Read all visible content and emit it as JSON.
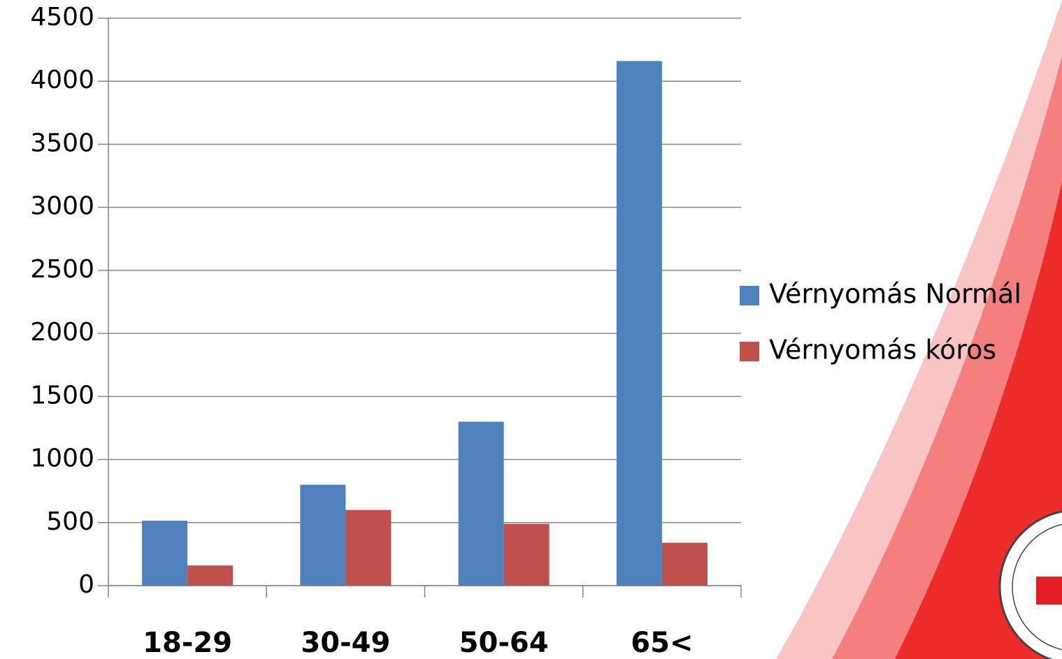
{
  "chart_data": {
    "type": "bar",
    "categories": [
      "18-29",
      "30-49",
      "50-64",
      "65<"
    ],
    "series": [
      {
        "name": "Vérnyomás Normál",
        "color": "#4f81bd",
        "values": [
          515,
          800,
          1300,
          4160
        ]
      },
      {
        "name": "Vérnyomás kóros",
        "color": "#c0504d",
        "values": [
          160,
          600,
          490,
          340
        ]
      }
    ],
    "ylim": [
      0,
      4500
    ],
    "yticks": [
      0,
      500,
      1000,
      1500,
      2000,
      2500,
      3000,
      3500,
      4000,
      4500
    ],
    "grid": true,
    "legend": "right"
  }
}
